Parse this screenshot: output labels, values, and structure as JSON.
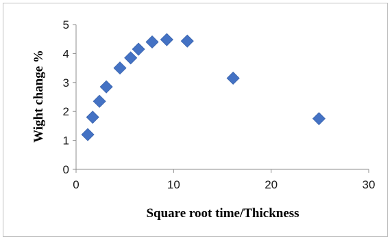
{
  "chart_data": {
    "type": "scatter",
    "title": "",
    "xlabel": "Square root time/Thickness",
    "ylabel": "Wight change %",
    "xlim": [
      0,
      30
    ],
    "ylim": [
      0,
      5
    ],
    "x_ticks": [
      "0",
      "10",
      "20",
      "30"
    ],
    "y_ticks": [
      "0",
      "1",
      "2",
      "3",
      "4",
      "5"
    ],
    "grid": false,
    "legend": "none",
    "marker": "diamond",
    "marker_color": "#4472c4",
    "series": [
      {
        "x": [
          1.2,
          1.7,
          2.4,
          3.1,
          4.5,
          5.6,
          6.4,
          7.8,
          9.3,
          11.4,
          16.1,
          24.9
        ],
        "y": [
          1.2,
          1.8,
          2.35,
          2.85,
          3.5,
          3.85,
          4.15,
          4.4,
          4.48,
          4.43,
          3.15,
          1.75
        ]
      }
    ]
  }
}
